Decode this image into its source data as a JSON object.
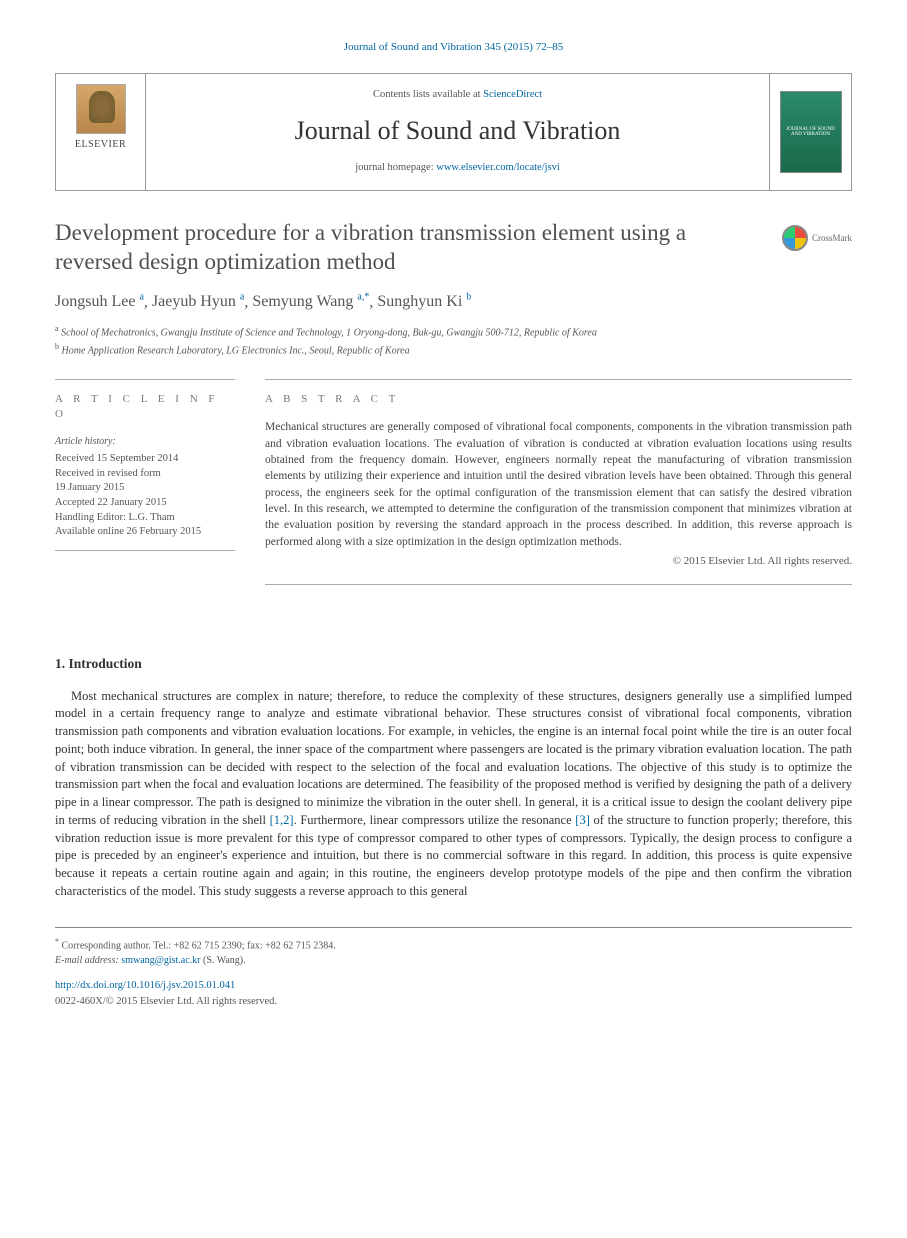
{
  "citation": "Journal of Sound and Vibration 345 (2015) 72–85",
  "header": {
    "contents_prefix": "Contents lists available at ",
    "contents_link": "ScienceDirect",
    "journal": "Journal of Sound and Vibration",
    "homepage_prefix": "journal homepage: ",
    "homepage_url": "www.elsevier.com/locate/jsvi",
    "elsevier": "ELSEVIER",
    "cover_text": "JOURNAL OF SOUND AND VIBRATION"
  },
  "crossmark": "CrossMark",
  "title": "Development procedure for a vibration transmission element using a reversed design optimization method",
  "authors": [
    {
      "name": "Jongsuh Lee",
      "sup": "a"
    },
    {
      "name": "Jaeyub Hyun",
      "sup": "a"
    },
    {
      "name": "Semyung Wang",
      "sup": "a,*"
    },
    {
      "name": "Sunghyun Ki",
      "sup": "b"
    }
  ],
  "affiliations": [
    {
      "sup": "a",
      "text": "School of Mechatronics, Gwangju Institute of Science and Technology, 1 Oryong-dong, Buk-gu, Gwangju 500-712, Republic of Korea"
    },
    {
      "sup": "b",
      "text": "Home Application Research Laboratory, LG Electronics Inc., Seoul, Republic of Korea"
    }
  ],
  "info": {
    "heading": "A R T I C L E   I N F O",
    "history_label": "Article history:",
    "received": "Received 15 September 2014",
    "revised1": "Received in revised form",
    "revised2": "19 January 2015",
    "accepted": "Accepted 22 January 2015",
    "editor": "Handling Editor: L.G. Tham",
    "online": "Available online 26 February 2015"
  },
  "abstract": {
    "heading": "A B S T R A C T",
    "text": "Mechanical structures are generally composed of vibrational focal components, components in the vibration transmission path and vibration evaluation locations. The evaluation of vibration is conducted at vibration evaluation locations using results obtained from the frequency domain. However, engineers normally repeat the manufacturing of vibration transmission elements by utilizing their experience and intuition until the desired vibration levels have been obtained. Through this general process, the engineers seek for the optimal configuration of the transmission element that can satisfy the desired vibration level. In this research, we attempted to determine the configuration of the transmission component that minimizes vibration at the evaluation position by reversing the standard approach in the process described. In addition, this reverse approach is performed along with a size optimization in the design optimization methods.",
    "copyright": "© 2015 Elsevier Ltd. All rights reserved."
  },
  "section1": {
    "heading": "1.  Introduction",
    "p1": "Most mechanical structures are complex in nature; therefore, to reduce the complexity of these structures, designers generally use a simplified lumped model in a certain frequency range to analyze and estimate vibrational behavior. These structures consist of vibrational focal components, vibration transmission path components and vibration evaluation locations. For example, in vehicles, the engine is an internal focal point while the tire is an outer focal point; both induce vibration. In general, the inner space of the compartment where passengers are located is the primary vibration evaluation location. The path of vibration transmission can be decided with respect to the selection of the focal and evaluation locations. The objective of this study is to optimize the transmission part when the focal and evaluation locations are determined. The feasibility of the proposed method is verified by designing the path of a delivery pipe in a linear compressor. The path is designed to minimize the vibration in the outer shell. In general, it is a critical issue to design the coolant delivery pipe in terms of reducing vibration in the shell [1,2]. Furthermore, linear compressors utilize the resonance [3] of the structure to function properly; therefore, this vibration reduction issue is more prevalent for this type of compressor compared to other types of compressors. Typically, the design process to configure a pipe is preceded by an engineer's experience and intuition, but there is no commercial software in this regard. In addition, this process is quite expensive because it repeats a certain routine again and again; in this routine, the engineers develop prototype models of the pipe and then confirm the vibration characteristics of the model. This study suggests a reverse approach to this general"
  },
  "footer": {
    "corr": "* Corresponding author. Tel.: +82 62 715 2390; fax: +82 62 715 2384.",
    "email_label": "E-mail address: ",
    "email": "smwang@gist.ac.kr",
    "email_who": " (S. Wang).",
    "doi": "http://dx.doi.org/10.1016/j.jsv.2015.01.041",
    "issn": "0022-460X/© 2015 Elsevier Ltd. All rights reserved."
  }
}
